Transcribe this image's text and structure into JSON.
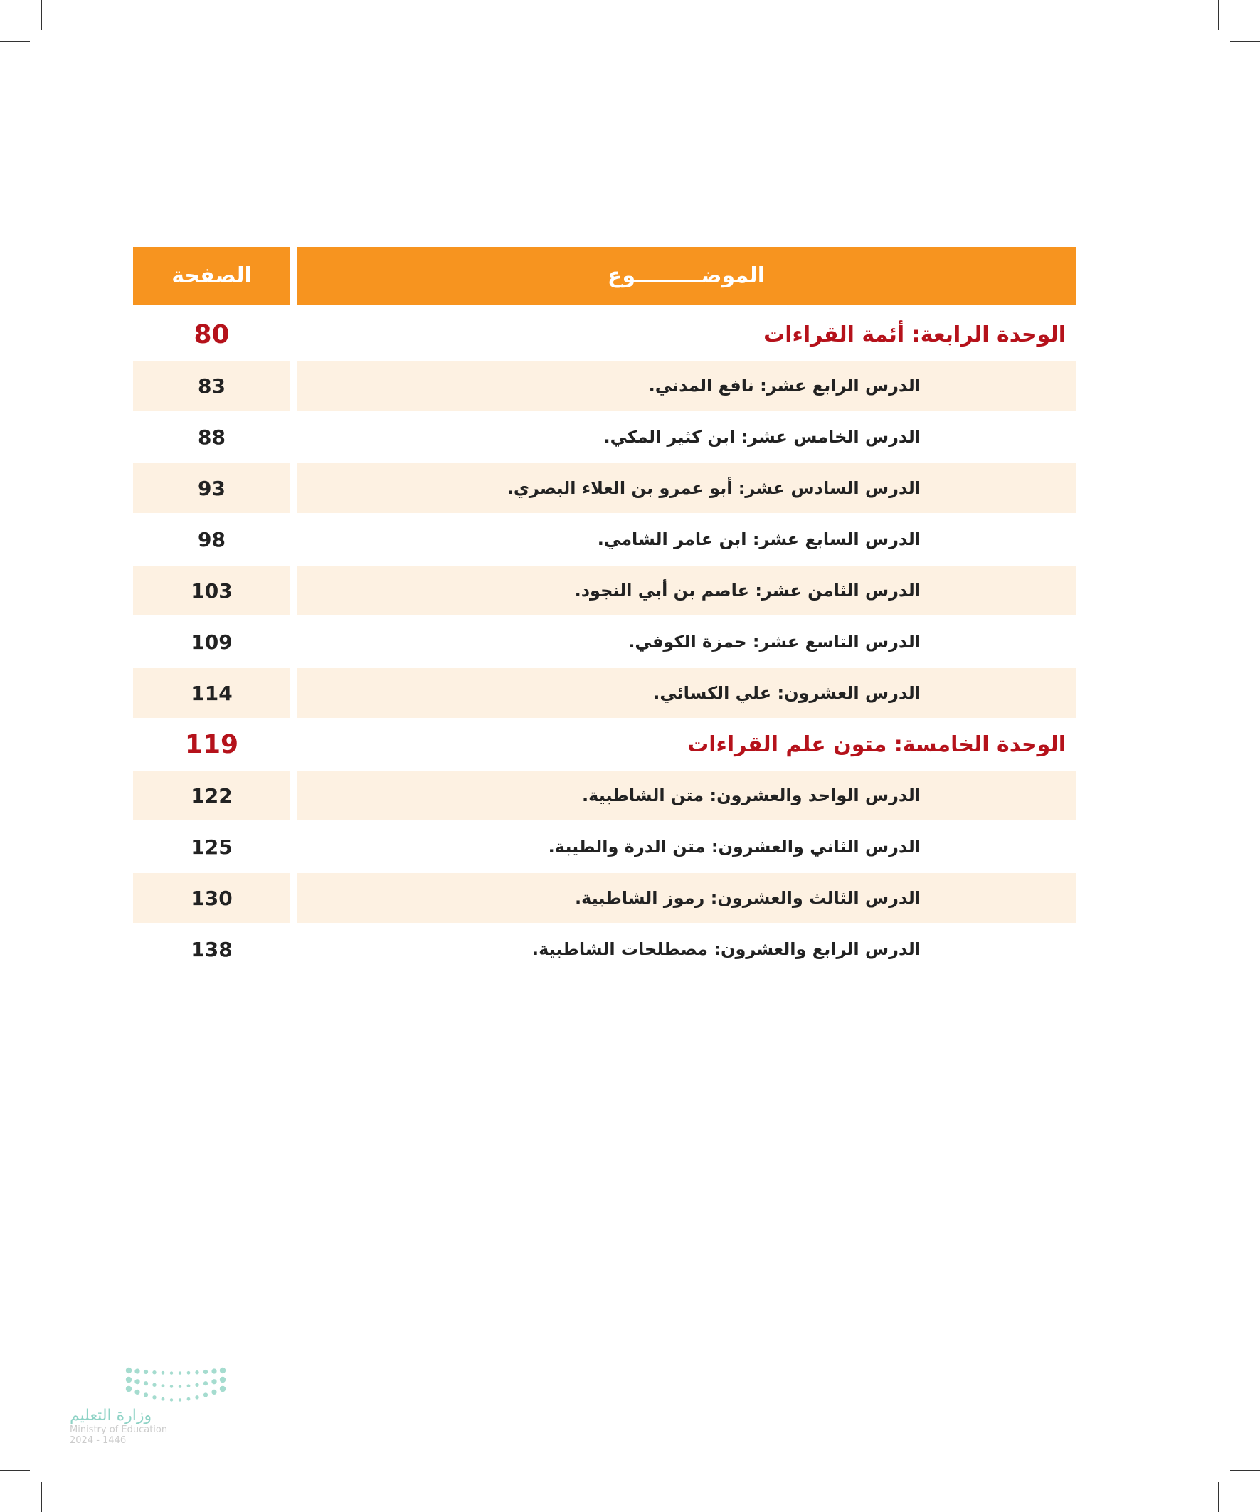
{
  "header": {
    "page_label": "الصفحة",
    "topic_label": "الموضـــــــــوع"
  },
  "rows": [
    {
      "type": "unit",
      "title": "الوحدة الرابعة: أئمة القراءات",
      "page": "80"
    },
    {
      "type": "lesson",
      "title": "الدرس الرابع عشر: نافع المدني.",
      "page": "83"
    },
    {
      "type": "lesson",
      "title": "الدرس الخامس عشر: ابن كثير المكي.",
      "page": "88"
    },
    {
      "type": "lesson",
      "title": "الدرس السادس عشر: أبو عمرو بن العلاء البصري.",
      "page": "93"
    },
    {
      "type": "lesson",
      "title": "الدرس السابع عشر: ابن عامر الشامي.",
      "page": "98"
    },
    {
      "type": "lesson",
      "title": "الدرس الثامن عشر: عاصم بن أبي النجود.",
      "page": "103"
    },
    {
      "type": "lesson",
      "title": "الدرس التاسع عشر: حمزة الكوفي.",
      "page": "109"
    },
    {
      "type": "lesson",
      "title": "الدرس العشرون: علي الكسائي.",
      "page": "114"
    },
    {
      "type": "unit",
      "title": "الوحدة الخامسة: متون علم القراءات",
      "page": "119"
    },
    {
      "type": "lesson",
      "title": "الدرس الواحد والعشرون: متن الشاطبية.",
      "page": "122"
    },
    {
      "type": "lesson",
      "title": "الدرس الثاني والعشرون: متن الدرة والطيبة.",
      "page": "125"
    },
    {
      "type": "lesson",
      "title": "الدرس الثالث والعشرون: رموز الشاطبية.",
      "page": "130"
    },
    {
      "type": "lesson",
      "title": "الدرس الرابع والعشرون: مصطلحات الشاطبية.",
      "page": "138"
    }
  ],
  "colors": {
    "header": "#f7941f",
    "unit_text": "#b5121b",
    "row_shade": "#fdf1e2"
  },
  "logo": {
    "arabic": "وزارة التعليم",
    "english": "Ministry of Education",
    "year": "2024 - 1446"
  }
}
